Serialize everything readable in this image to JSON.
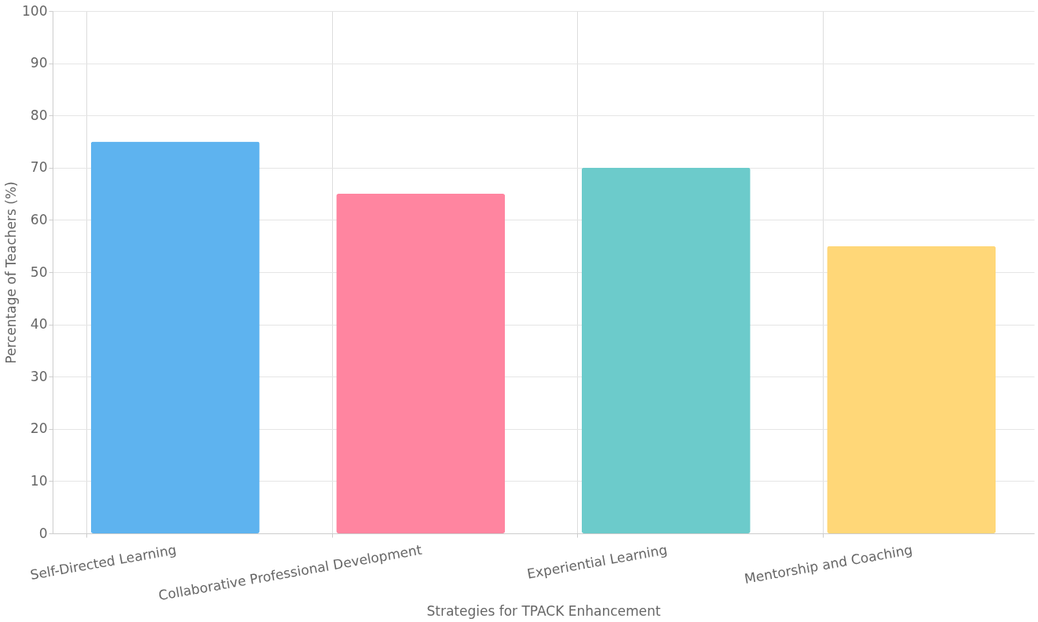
{
  "chart_data": {
    "type": "bar",
    "xlabel": "Strategies for TPACK Enhancement",
    "ylabel": "Percentage of Teachers (%)",
    "categories": [
      "Self-Directed Learning",
      "Collaborative Professional Development",
      "Experiential Learning",
      "Mentorship and Coaching"
    ],
    "values": [
      75,
      65,
      70,
      55
    ],
    "colors": [
      "#5eb3ef",
      "#ff85a0",
      "#6ccbcb",
      "#ffd778"
    ],
    "ylim": [
      0,
      100
    ],
    "yticks": [
      0,
      10,
      20,
      30,
      40,
      50,
      60,
      70,
      80,
      90,
      100
    ],
    "grid": true
  }
}
